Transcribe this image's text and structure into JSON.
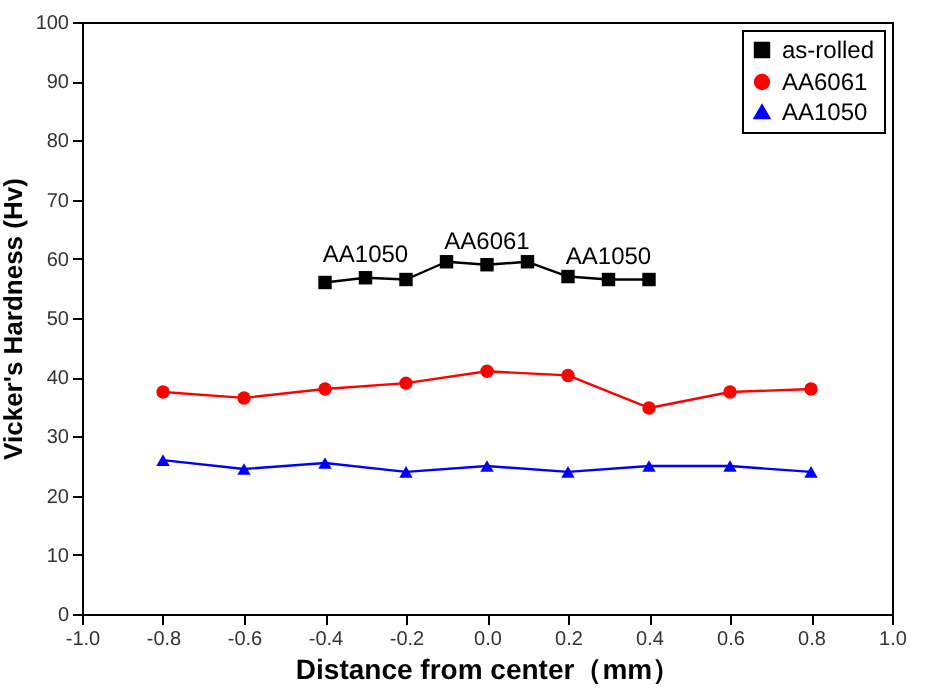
{
  "chart_data": {
    "type": "line",
    "xlabel": "Distance from center（mm）",
    "ylabel": "Vicker's Hardness (Hv)",
    "xlim": [
      -1.0,
      1.0
    ],
    "xticks": [
      {
        "value": -1,
        "label": "-1.0"
      },
      {
        "value": -0.8,
        "label": "-0.8"
      },
      {
        "value": -0.6,
        "label": "-0.6"
      },
      {
        "value": -0.4,
        "label": "-0.4"
      },
      {
        "value": -0.2,
        "label": "-0.2"
      },
      {
        "value": 0,
        "label": "0.0"
      },
      {
        "value": 0.2,
        "label": "0.2"
      },
      {
        "value": 0.4,
        "label": "0.4"
      },
      {
        "value": 0.6,
        "label": "0.6"
      },
      {
        "value": 0.8,
        "label": "0.8"
      },
      {
        "value": 1,
        "label": "1.0"
      }
    ],
    "ylim": [
      0,
      100
    ],
    "yticks": [
      0,
      10,
      20,
      30,
      40,
      50,
      60,
      70,
      80,
      90,
      100
    ],
    "series": [
      {
        "name": "as-rolled",
        "color": "#000000",
        "marker": "square",
        "x": [
          -0.4,
          -0.3,
          -0.2,
          -0.1,
          0,
          0.1,
          0.2,
          0.3,
          0.4
        ],
        "values": [
          56,
          56.8,
          56.5,
          59.5,
          59,
          59.5,
          57,
          56.5,
          56.5
        ]
      },
      {
        "name": "AA6061",
        "color": "#ff0000",
        "marker": "circle",
        "x": [
          -0.8,
          -0.6,
          -0.4,
          -0.2,
          0,
          0.2,
          0.4,
          0.6,
          0.8
        ],
        "values": [
          37.5,
          36.5,
          38,
          39,
          41,
          40.3,
          34.8,
          37.5,
          38
        ]
      },
      {
        "name": "AA1050",
        "color": "#0000ff",
        "marker": "triangle",
        "x": [
          -0.8,
          -0.6,
          -0.4,
          -0.2,
          0,
          0.2,
          0.4,
          0.6,
          0.8
        ],
        "values": [
          26,
          24.5,
          25.5,
          24,
          25,
          24,
          25,
          25,
          24
        ]
      }
    ],
    "annotations": [
      {
        "text": "AA1050",
        "x": -0.3,
        "y": 56.8
      },
      {
        "text": "AA6061",
        "x": 0,
        "y": 59
      },
      {
        "text": "AA1050",
        "x": 0.3,
        "y": 56.5
      }
    ],
    "legend": "top right",
    "grid": false
  }
}
